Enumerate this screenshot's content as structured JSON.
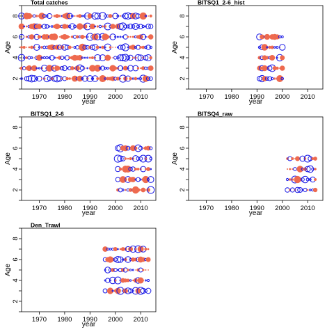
{
  "colors": {
    "positive": "#EE6A4F",
    "negative": "#1A1AE6",
    "axis": "#000000",
    "background": "#ffffff"
  },
  "chart_data": [
    {
      "type": "scatter",
      "title": "Total catches",
      "xlabel": "year",
      "ylabel": "Age",
      "xlim": [
        1963,
        2016
      ],
      "ylim": [
        1,
        9
      ],
      "xticks": [
        "1970",
        "1980",
        "1990",
        "2000",
        "2010"
      ],
      "yticks": [
        "2",
        "4",
        "6",
        "8"
      ],
      "years": [
        1963,
        2014
      ],
      "ages": [
        2,
        3,
        4,
        5,
        6,
        7,
        8
      ],
      "legend": false,
      "grid": false
    },
    {
      "type": "scatter",
      "title": "BITSQ1_2-6_hist",
      "xlabel": "year",
      "ylabel": "Age",
      "xlim": [
        1963,
        2016
      ],
      "ylim": [
        1,
        9
      ],
      "xticks": [
        "1970",
        "1980",
        "1990",
        "2000",
        "2010"
      ],
      "yticks": [
        "2",
        "4",
        "6",
        "8"
      ],
      "years": [
        1991,
        2000
      ],
      "ages": [
        2,
        3,
        4,
        5,
        6
      ],
      "legend": false,
      "grid": false
    },
    {
      "type": "scatter",
      "title": "BITSQ1_2-6",
      "xlabel": "year",
      "ylabel": "Age",
      "xlim": [
        1963,
        2016
      ],
      "ylim": [
        1,
        9
      ],
      "xticks": [
        "1970",
        "1980",
        "1990",
        "2000",
        "2010"
      ],
      "yticks": [
        "2",
        "4",
        "6",
        "8"
      ],
      "years": [
        2001,
        2014
      ],
      "ages": [
        2,
        3,
        4,
        5,
        6
      ],
      "legend": false,
      "grid": false
    },
    {
      "type": "scatter",
      "title": "BITSQ4_raw",
      "xlabel": "year",
      "ylabel": "Age",
      "xlim": [
        1963,
        2016
      ],
      "ylim": [
        1,
        9
      ],
      "xticks": [
        "1970",
        "1980",
        "1990",
        "2000",
        "2010"
      ],
      "yticks": [
        "2",
        "4",
        "6",
        "8"
      ],
      "years": [
        2002,
        2013
      ],
      "ages": [
        2,
        3,
        4,
        5
      ],
      "legend": false,
      "grid": false
    },
    {
      "type": "scatter",
      "title": "Den_Trawl",
      "xlabel": "year",
      "ylabel": "Age",
      "xlim": [
        1963,
        2016
      ],
      "ylim": [
        1,
        9
      ],
      "xticks": [
        "1970",
        "1980",
        "1990",
        "2000",
        "2010"
      ],
      "yticks": [
        "2",
        "4",
        "6",
        "8"
      ],
      "years": [
        1996,
        2013
      ],
      "ages": [
        3,
        4,
        5,
        6,
        7
      ],
      "legend": false,
      "grid": false
    }
  ]
}
